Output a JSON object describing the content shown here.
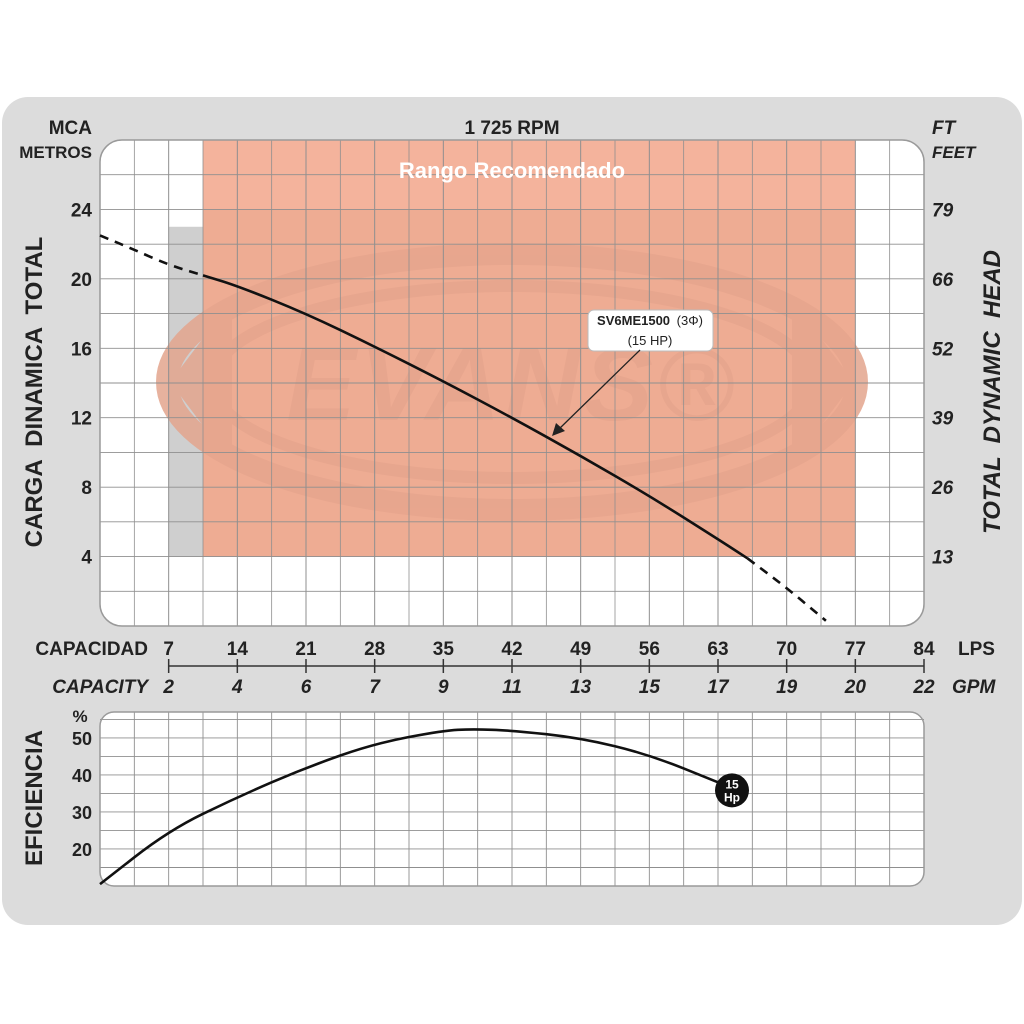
{
  "chart_data": [
    {
      "type": "line",
      "title": "1 725 RPM",
      "left_unit_top": "MCA",
      "left_unit_bottom": "METROS",
      "right_unit_top": "FT",
      "right_unit_bottom": "FEET",
      "ylabel": "CARGA  DINAMICA  TOTAL",
      "ylabel_right": "TOTAL  DYNAMIC  HEAD",
      "y_ticks": [
        "4",
        "8",
        "12",
        "16",
        "20",
        "24"
      ],
      "y_ticks_right": [
        "13",
        "26",
        "39",
        "52",
        "66",
        "79"
      ],
      "ylim": [
        0,
        28
      ],
      "x_ticks_lps": [
        "7",
        "14",
        "21",
        "28",
        "35",
        "42",
        "49",
        "56",
        "63",
        "70",
        "77",
        "84"
      ],
      "x_ticks_gpm": [
        "2",
        "4",
        "6",
        "7",
        "9",
        "11",
        "13",
        "15",
        "17",
        "19",
        "20",
        "22"
      ],
      "xlim": [
        0,
        84
      ],
      "xlabel_left": "CAPACIDAD",
      "xlabel_left_en": "CAPACITY",
      "xlabel_unit": "LPS",
      "xlabel_unit_en": "GPM",
      "recommended_range": {
        "label": "Rango Recomendado",
        "x": [
          10.5,
          77
        ],
        "y": [
          4,
          28
        ]
      },
      "grey_band": {
        "x": [
          7,
          10.5
        ],
        "y": [
          4,
          23
        ]
      },
      "watermark": "EVANS®",
      "series": [
        {
          "name": "SV6ME1500 (3Φ) (15 HP)",
          "name_bold": "SV6ME1500",
          "name_suffix": "(3Φ)",
          "name_line2": "(15 HP)",
          "color": "#111111",
          "x": [
            0,
            3,
            7,
            10.5,
            14,
            21,
            28,
            35,
            42,
            49,
            56,
            63,
            66,
            70,
            74
          ],
          "y": [
            22.5,
            21.8,
            20.8,
            20.2,
            19.6,
            18.0,
            16.1,
            14.1,
            12.0,
            9.8,
            7.5,
            5.0,
            3.9,
            2.2,
            0.3
          ],
          "solid_x_range": [
            10.5,
            66
          ]
        }
      ]
    },
    {
      "type": "line",
      "ylabel": "EFICIENCIA",
      "unit": "%",
      "y_ticks": [
        "20",
        "30",
        "40",
        "50"
      ],
      "ylim": [
        10,
        57
      ],
      "xlim": [
        0,
        84
      ],
      "series": [
        {
          "name": "15 Hp",
          "badge_line1": "15",
          "badge_line2": "Hp",
          "color": "#111111",
          "x": [
            0,
            7,
            14,
            21,
            28,
            35,
            38,
            42,
            49,
            56,
            63
          ],
          "y": [
            10.5,
            25,
            34,
            42,
            48.5,
            52,
            52.4,
            52,
            50,
            45.5,
            38
          ]
        }
      ]
    }
  ]
}
